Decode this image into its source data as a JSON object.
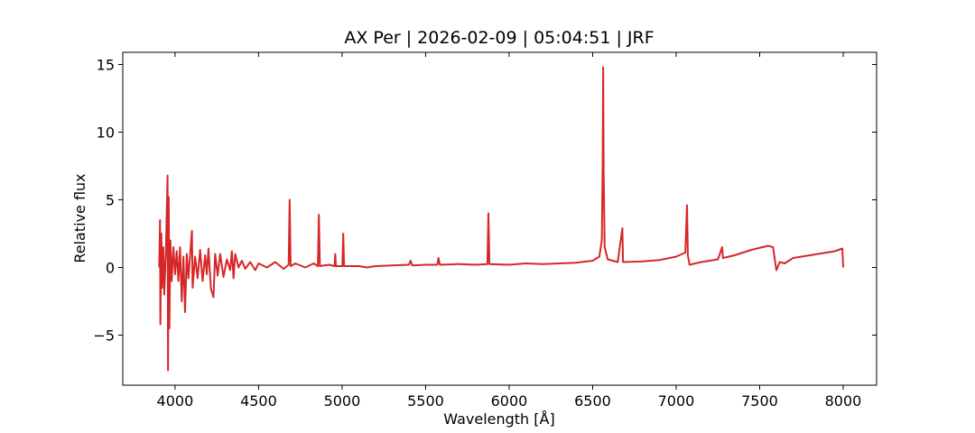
{
  "chart_data": {
    "type": "line",
    "title": "AX Per | 2026-02-09 | 05:04:51 | JRF",
    "x_label": "Wavelength [Å]",
    "y_label": "Relative flux",
    "xlim": [
      3687,
      8200
    ],
    "ylim": [
      -8.7,
      15.9
    ],
    "xticks": [
      4000,
      4500,
      5000,
      5500,
      6000,
      6500,
      7000,
      7500,
      8000
    ],
    "yticks": [
      {
        "value": -5,
        "label": "−5"
      },
      0,
      5,
      10,
      15
    ],
    "series": [
      {
        "color": "#d62728",
        "x": [
          3905,
          3910,
          3912,
          3918,
          3922,
          3930,
          3935,
          3945,
          3955,
          3958,
          3962,
          3966,
          3972,
          3980,
          3990,
          4000,
          4010,
          4020,
          4030,
          4040,
          4050,
          4060,
          4070,
          4080,
          4090,
          4101,
          4105,
          4120,
          4135,
          4150,
          4165,
          4180,
          4190,
          4200,
          4215,
          4230,
          4240,
          4255,
          4270,
          4290,
          4310,
          4330,
          4340,
          4350,
          4360,
          4380,
          4400,
          4420,
          4450,
          4480,
          4500,
          4550,
          4600,
          4650,
          4680,
          4686,
          4692,
          4720,
          4780,
          4830,
          4855,
          4861,
          4867,
          4920,
          4955,
          4959,
          4963,
          5002,
          5007,
          5012,
          5100,
          5150,
          5200,
          5300,
          5400,
          5410,
          5420,
          5500,
          5570,
          5577,
          5585,
          5700,
          5800,
          5870,
          5876,
          5882,
          6000,
          6100,
          6200,
          6300,
          6400,
          6500,
          6540,
          6555,
          6560,
          6563,
          6566,
          6572,
          6590,
          6650,
          6678,
          6682,
          6800,
          6900,
          7000,
          7055,
          7065,
          7070,
          7080,
          7150,
          7250,
          7275,
          7280,
          7350,
          7450,
          7550,
          7580,
          7600,
          7620,
          7650,
          7700,
          7800,
          7900,
          7950,
          7995,
          8000
        ],
        "values": [
          0,
          3.5,
          -4.2,
          2.5,
          -1.5,
          1.5,
          -2.0,
          1.0,
          6.8,
          -7.6,
          5.2,
          -4.5,
          2.0,
          -1.0,
          1.5,
          -0.5,
          1.2,
          -1.0,
          1.5,
          -2.5,
          0.8,
          -3.3,
          1.0,
          -0.8,
          0.9,
          2.7,
          -1.5,
          0.8,
          -0.8,
          1.3,
          -1.0,
          0.9,
          -0.5,
          1.4,
          -1.6,
          -2.2,
          1.0,
          -0.6,
          1.0,
          -0.7,
          0.6,
          -0.2,
          1.2,
          -0.8,
          1.0,
          0.0,
          0.5,
          -0.1,
          0.4,
          -0.2,
          0.3,
          0.0,
          0.4,
          -0.1,
          0.2,
          5.0,
          0.1,
          0.3,
          0.0,
          0.3,
          0.1,
          3.9,
          0.1,
          0.2,
          0.1,
          1.0,
          0.1,
          0.1,
          2.5,
          0.1,
          0.1,
          0.0,
          0.1,
          0.15,
          0.2,
          0.5,
          0.15,
          0.2,
          0.2,
          0.7,
          0.2,
          0.25,
          0.2,
          0.25,
          4.0,
          0.25,
          0.2,
          0.3,
          0.25,
          0.3,
          0.35,
          0.5,
          0.8,
          2.0,
          7.5,
          14.8,
          7.0,
          1.5,
          0.6,
          0.4,
          2.9,
          0.4,
          0.45,
          0.55,
          0.8,
          1.1,
          4.6,
          0.9,
          0.2,
          0.4,
          0.6,
          1.5,
          0.7,
          0.9,
          1.3,
          1.6,
          1.5,
          -0.2,
          0.4,
          0.3,
          0.7,
          0.9,
          1.1,
          1.2,
          1.4,
          0.0
        ]
      }
    ]
  }
}
